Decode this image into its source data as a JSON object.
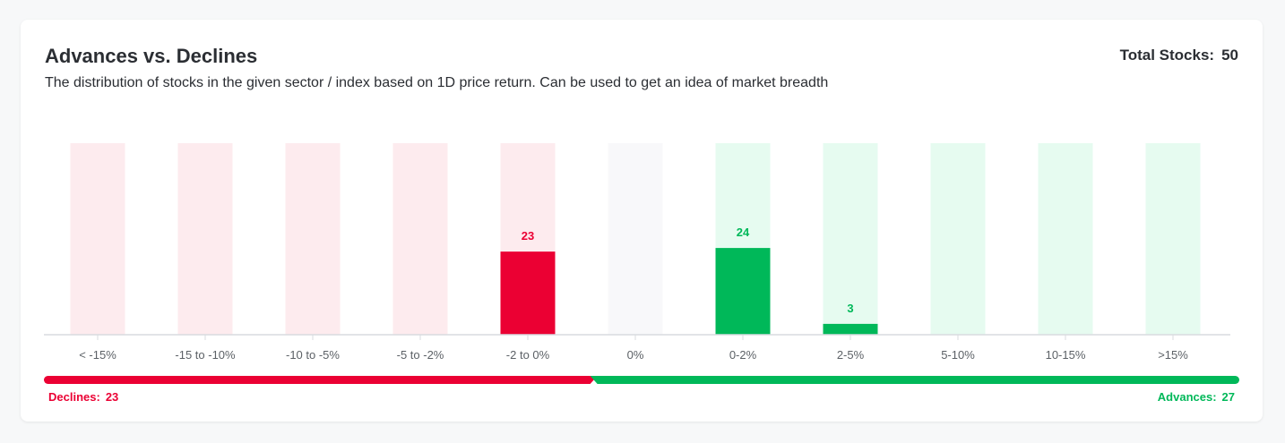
{
  "header": {
    "title": "Advances vs. Declines",
    "subtitle": "The distribution of stocks in the given sector / index based on 1D price return. Can be used to get an idea of market breadth",
    "total_label": "Total Stocks:",
    "total_value": "50"
  },
  "chart_data": {
    "type": "bar",
    "categories": [
      "< -15%",
      "-15 to -10%",
      "-10 to -5%",
      "-5 to -2%",
      "-2 to 0%",
      "0%",
      "0-2%",
      "2-5%",
      "5-10%",
      "10-15%",
      ">15%"
    ],
    "values": [
      0,
      0,
      0,
      0,
      23,
      0,
      24,
      3,
      0,
      0,
      0
    ],
    "bar_kind": [
      "decline",
      "decline",
      "decline",
      "decline",
      "decline",
      "neutral",
      "advance",
      "advance",
      "advance",
      "advance",
      "advance"
    ],
    "ylim": [
      0,
      53
    ],
    "colors": {
      "decline": "#eb0033",
      "decline_track": "#fdebee",
      "advance": "#00b859",
      "advance_track": "#e6fbf0",
      "neutral_track": "#f8f8fa",
      "axis": "#d8dbdf",
      "tick_text": "#5c6166"
    }
  },
  "breadth": {
    "declines_label": "Declines:",
    "declines_value": 23,
    "advances_label": "Advances:",
    "advances_value": 27
  }
}
